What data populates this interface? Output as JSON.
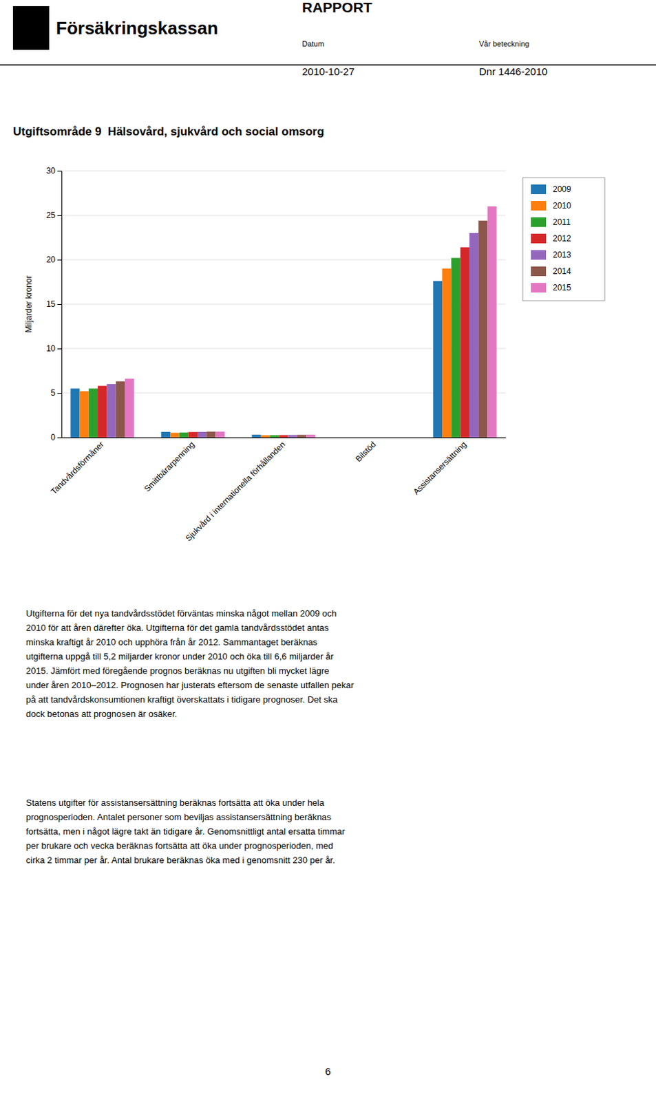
{
  "header": {
    "logo_text": "Försäkringskassan",
    "report_label": "RAPPORT",
    "date_label": "Datum",
    "date_value": "2010-10-27",
    "reference_label": "Vår beteckning",
    "reference_value": "Dnr 1446-2010"
  },
  "chart_data": {
    "type": "bar",
    "title": "Utgiftsområde 9  Hälsovård, sjukvård och social omsorg",
    "y_label": "Miljarder kronor",
    "categories": [
      "Tandvårdsförmåner",
      "Smittbärarpenning",
      "Sjukvård i internationella förhållanden",
      "Bilstöd",
      "Assistansersättning"
    ],
    "series": [
      {
        "name": "2009",
        "values": [
          5.5,
          0.62,
          0.3,
          0.0,
          17.6
        ]
      },
      {
        "name": "2010",
        "values": [
          5.2,
          0.52,
          0.25,
          0.0,
          19.0
        ]
      },
      {
        "name": "2011",
        "values": [
          5.5,
          0.55,
          0.25,
          0.0,
          20.2
        ]
      },
      {
        "name": "2012",
        "values": [
          5.8,
          0.6,
          0.26,
          0.0,
          21.4
        ]
      },
      {
        "name": "2013",
        "values": [
          6.0,
          0.62,
          0.27,
          0.0,
          23.0
        ]
      },
      {
        "name": "2014",
        "values": [
          6.3,
          0.65,
          0.28,
          0.0,
          24.4
        ]
      },
      {
        "name": "2015",
        "values": [
          6.6,
          0.65,
          0.3,
          0.0,
          26.0
        ]
      }
    ],
    "ylim": [
      0,
      30
    ],
    "yticks": [
      0,
      5,
      10,
      15,
      20,
      25,
      30
    ],
    "grid": true,
    "legend": "top-right"
  },
  "body_paragraphs": [
    [
      "Utgifterna för det nya tandvårdsstödet förväntas minska något mellan 2009 och",
      "2010 för att åren därefter öka. Utgifterna för det gamla tandvårdsstödet antas",
      "minska kraftigt år 2010 och upphöra från år 2012. Sammantaget beräknas",
      "utgifterna uppgå till 5,2 miljarder kronor under 2010 och öka till 6,6 miljarder år",
      "2015. Jämfört med föregående prognos beräknas nu utgiften bli mycket lägre",
      "under åren 2010–2012. Prognosen har justerats eftersom de senaste utfallen pekar",
      "på att tandvårdskonsumtionen kraftigt överskattats i tidigare prognoser. Det ska",
      "dock betonas att prognosen är osäker."
    ],
    [
      "Statens utgifter för assistansersättning beräknas fortsätta att öka under hela",
      "prognosperioden. Antalet personer som beviljas assistansersättning beräknas",
      "fortsätta, men i något lägre takt än tidigare år. Genomsnittligt antal ersatta timmar",
      "per brukare och vecka beräknas fortsätta att öka under prognosperioden, med",
      "cirka 2 timmar per år. Antal brukare beräknas öka med i genomsnitt 230 per år."
    ]
  ],
  "page_number": "6"
}
